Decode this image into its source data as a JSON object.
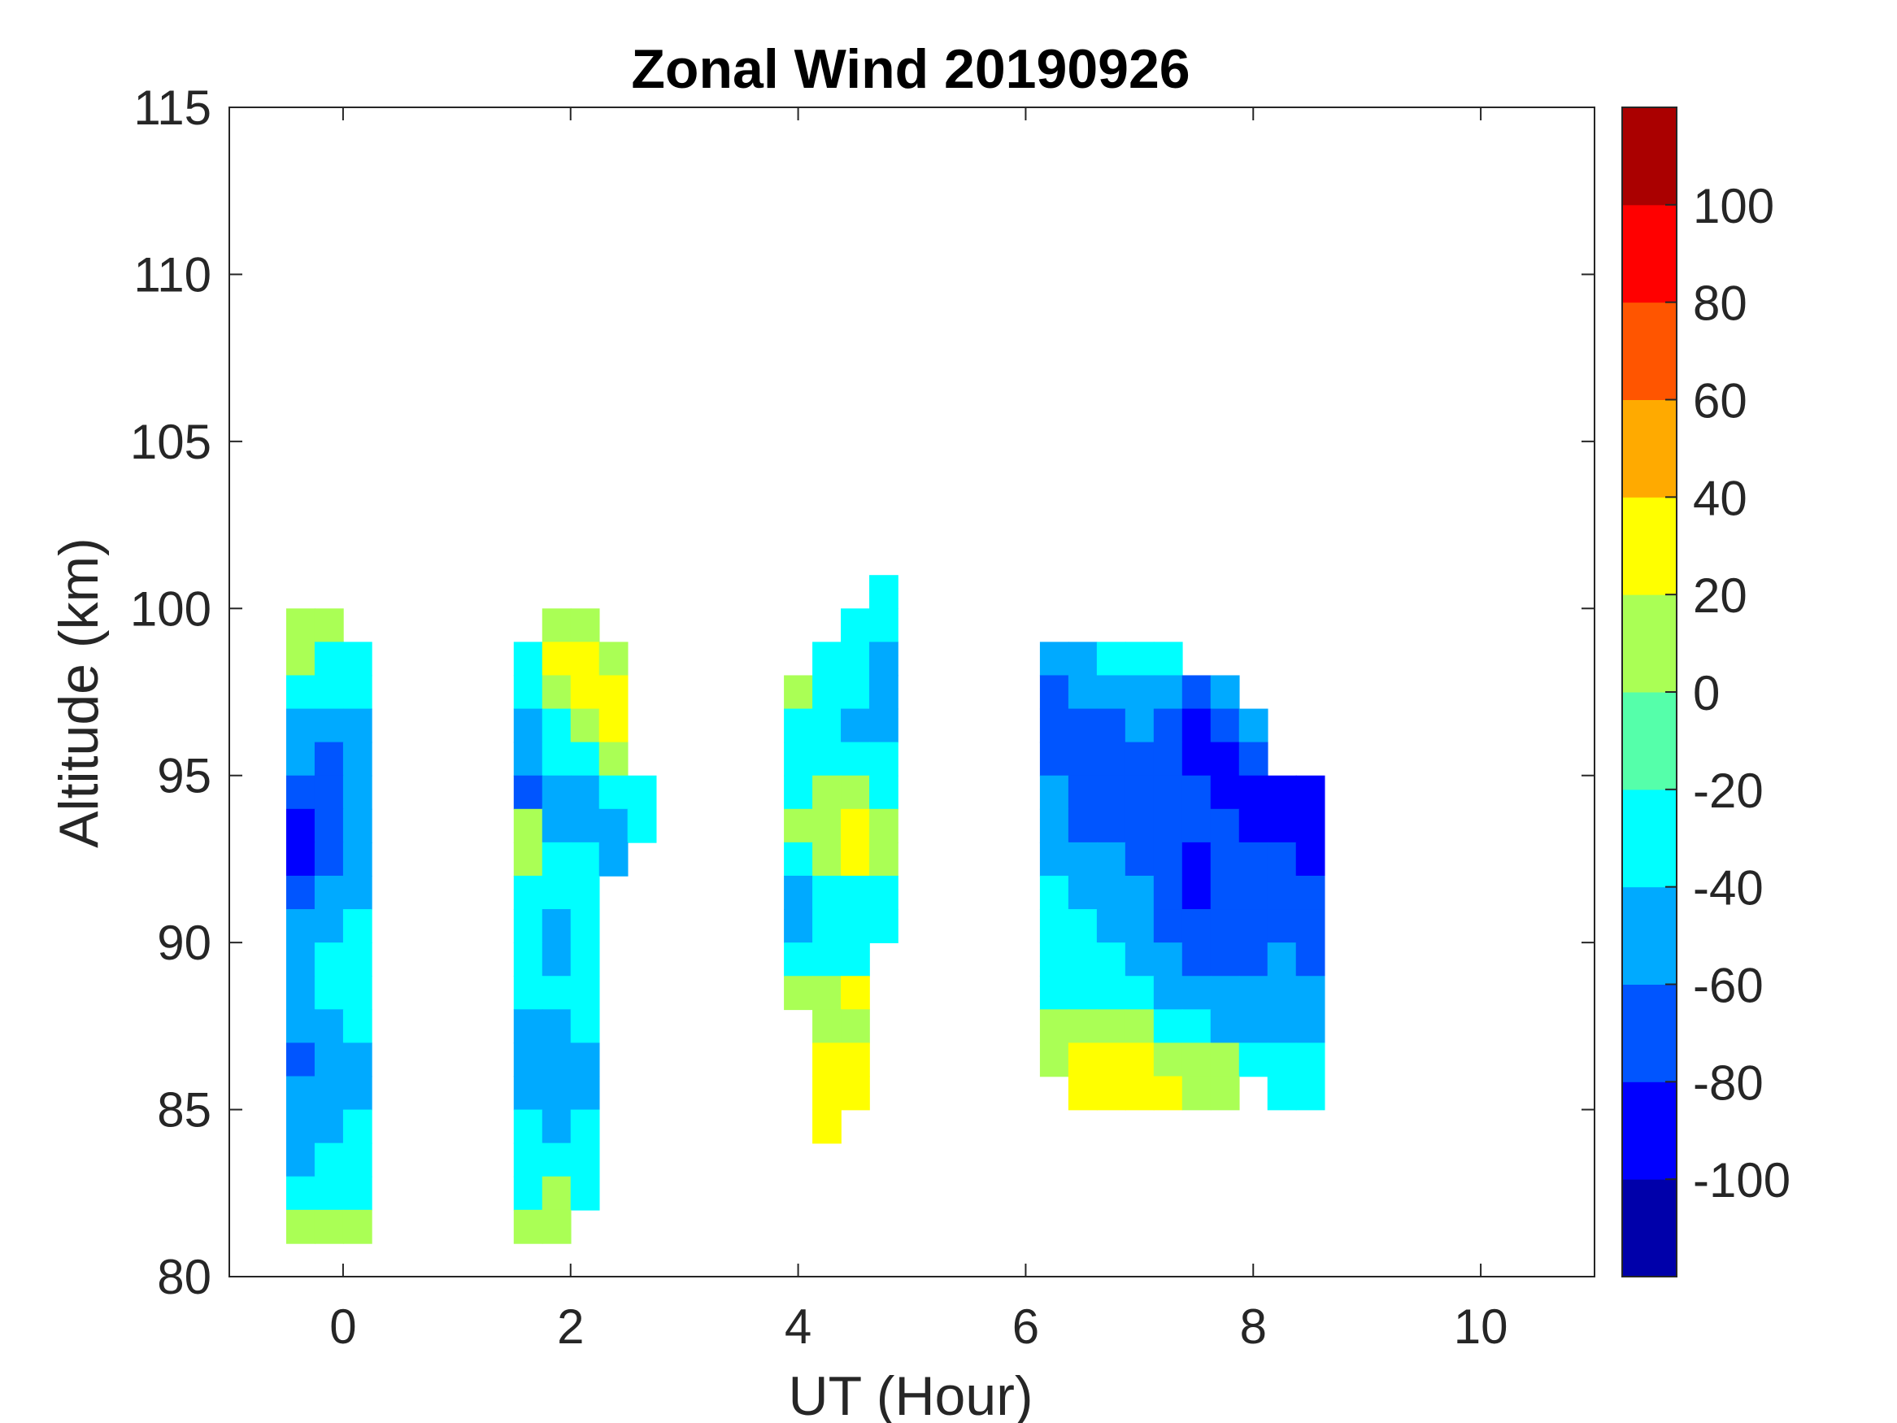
{
  "chart_data": {
    "type": "heatmap",
    "subtype": "filled-contour",
    "title": "Zonal Wind 20190926",
    "xlabel": "UT (Hour)",
    "ylabel": "Altitude (km)",
    "xlim": [
      -1,
      11
    ],
    "ylim": [
      80,
      115
    ],
    "xticks": [
      0,
      2,
      4,
      6,
      8,
      10
    ],
    "yticks": [
      80,
      85,
      90,
      95,
      100,
      105,
      110,
      115
    ],
    "grid": false,
    "colorbar": {
      "placement": "right",
      "range": [
        -120,
        120
      ],
      "levels": [
        -120,
        -100,
        -80,
        -60,
        -40,
        -20,
        0,
        20,
        40,
        60,
        80,
        100,
        120
      ],
      "ticks": [
        -100,
        -80,
        -60,
        -40,
        -20,
        0,
        20,
        40,
        60,
        80,
        100
      ],
      "colors": [
        "#0000AA",
        "#0000FF",
        "#0055FF",
        "#00AAFF",
        "#00FFFF",
        "#55FFAA",
        "#AAFF55",
        "#FFFF00",
        "#FFAA00",
        "#FF5500",
        "#FF0000",
        "#AA0000"
      ]
    },
    "cell_size": {
      "hours": 0.25,
      "km": 1
    },
    "blocks": [
      {
        "x": [
          -0.375,
          -0.125,
          0.125
        ],
        "alt_top": 99.5,
        "values": [
          [
            10,
            10,
            null
          ],
          [
            0,
            -30,
            -30
          ],
          [
            -40,
            -30,
            -30
          ],
          [
            -50,
            -60,
            -50
          ],
          [
            -60,
            -70,
            -50
          ],
          [
            -70,
            -70,
            -60
          ],
          [
            -90,
            -70,
            -60
          ],
          [
            -85,
            -70,
            -50
          ],
          [
            -70,
            -60,
            -50
          ],
          [
            -60,
            -50,
            -40
          ],
          [
            -50,
            -30,
            -30
          ],
          [
            -50,
            -40,
            -30
          ],
          [
            -50,
            -50,
            -40
          ],
          [
            -70,
            -60,
            -50
          ],
          [
            -60,
            -50,
            -50
          ],
          [
            -50,
            -50,
            -40
          ],
          [
            -50,
            -40,
            -30
          ],
          [
            -30,
            -30,
            -30
          ],
          [
            10,
            10,
            10
          ]
        ]
      },
      {
        "x": [
          1.625,
          1.875,
          2.125,
          2.375,
          2.625
        ],
        "alt_top": 99.5,
        "values": [
          [
            null,
            10,
            10,
            null,
            null
          ],
          [
            -30,
            20,
            30,
            0,
            null
          ],
          [
            -40,
            10,
            20,
            30,
            null
          ],
          [
            -60,
            -30,
            10,
            30,
            null
          ],
          [
            -60,
            -40,
            -30,
            0,
            null
          ],
          [
            -70,
            -60,
            -50,
            -30,
            -30
          ],
          [
            0,
            -50,
            -60,
            -60,
            -30
          ],
          [
            0,
            -40,
            -40,
            -50,
            null
          ],
          [
            -30,
            -40,
            -30,
            null,
            null
          ],
          [
            -30,
            -50,
            -40,
            null,
            null
          ],
          [
            -40,
            -50,
            -40,
            null,
            null
          ],
          [
            -40,
            -30,
            -40,
            null,
            null
          ],
          [
            -50,
            -50,
            -40,
            null,
            null
          ],
          [
            -50,
            -60,
            -50,
            null,
            null
          ],
          [
            -50,
            -60,
            -50,
            null,
            null
          ],
          [
            -40,
            -50,
            -40,
            null,
            null
          ],
          [
            -30,
            -40,
            -30,
            null,
            null
          ],
          [
            -30,
            0,
            -30,
            null,
            null
          ],
          [
            10,
            10,
            null,
            null,
            null
          ]
        ]
      },
      {
        "x": [
          4.0,
          4.25,
          4.5,
          4.75
        ],
        "alt_top": 100.5,
        "values": [
          [
            null,
            null,
            null,
            -30
          ],
          [
            null,
            null,
            -30,
            -40
          ],
          [
            null,
            -30,
            -30,
            -50
          ],
          [
            0,
            -30,
            -40,
            -60
          ],
          [
            -30,
            -40,
            -50,
            -50
          ],
          [
            -30,
            -30,
            -30,
            -40
          ],
          [
            -30,
            0,
            0,
            -30
          ],
          [
            0,
            10,
            20,
            0
          ],
          [
            -30,
            0,
            20,
            0
          ],
          [
            -50,
            -30,
            -30,
            -30
          ],
          [
            -60,
            -40,
            -40,
            -30
          ],
          [
            -30,
            -30,
            -30,
            null
          ],
          [
            10,
            10,
            20,
            null
          ],
          [
            null,
            10,
            10,
            null
          ],
          [
            null,
            20,
            30,
            null
          ],
          [
            null,
            30,
            30,
            null
          ],
          [
            null,
            30,
            null,
            null
          ]
        ]
      },
      {
        "x": [
          6.25,
          6.5,
          6.75,
          7.0,
          7.25,
          7.5,
          7.75,
          8.0,
          8.25,
          8.5
        ],
        "alt_top": 98.5,
        "values": [
          [
            -50,
            -50,
            -40,
            -30,
            -40,
            null,
            null,
            null,
            null,
            null
          ],
          [
            -70,
            -60,
            -60,
            -50,
            -60,
            -80,
            -60,
            null,
            null,
            null
          ],
          [
            -80,
            -70,
            -70,
            -60,
            -70,
            -90,
            -70,
            -60,
            null,
            null
          ],
          [
            -70,
            -70,
            -70,
            -70,
            -70,
            -90,
            -90,
            -80,
            null,
            null
          ],
          [
            -60,
            -70,
            -70,
            -70,
            -80,
            -80,
            -90,
            -90,
            -100,
            -90
          ],
          [
            -60,
            -70,
            -70,
            -70,
            -70,
            -80,
            -80,
            -90,
            -90,
            -90
          ],
          [
            -50,
            -60,
            -60,
            -70,
            -70,
            -90,
            -80,
            -80,
            -80,
            -90
          ],
          [
            -40,
            -50,
            -60,
            -60,
            -70,
            -90,
            -80,
            -80,
            -80,
            -80
          ],
          [
            -40,
            -40,
            -50,
            -60,
            -70,
            -70,
            -80,
            -80,
            -80,
            -70
          ],
          [
            -30,
            -30,
            -40,
            -50,
            -60,
            -70,
            -70,
            -70,
            -60,
            -70
          ],
          [
            -30,
            -30,
            -30,
            -40,
            -50,
            -60,
            -60,
            -60,
            -60,
            -60
          ],
          [
            10,
            10,
            10,
            0,
            -30,
            -40,
            -50,
            -50,
            -50,
            -60
          ],
          [
            10,
            20,
            20,
            20,
            10,
            0,
            0,
            -30,
            -30,
            -40
          ],
          [
            null,
            20,
            30,
            20,
            20,
            10,
            10,
            null,
            -30,
            -30
          ]
        ]
      }
    ]
  }
}
